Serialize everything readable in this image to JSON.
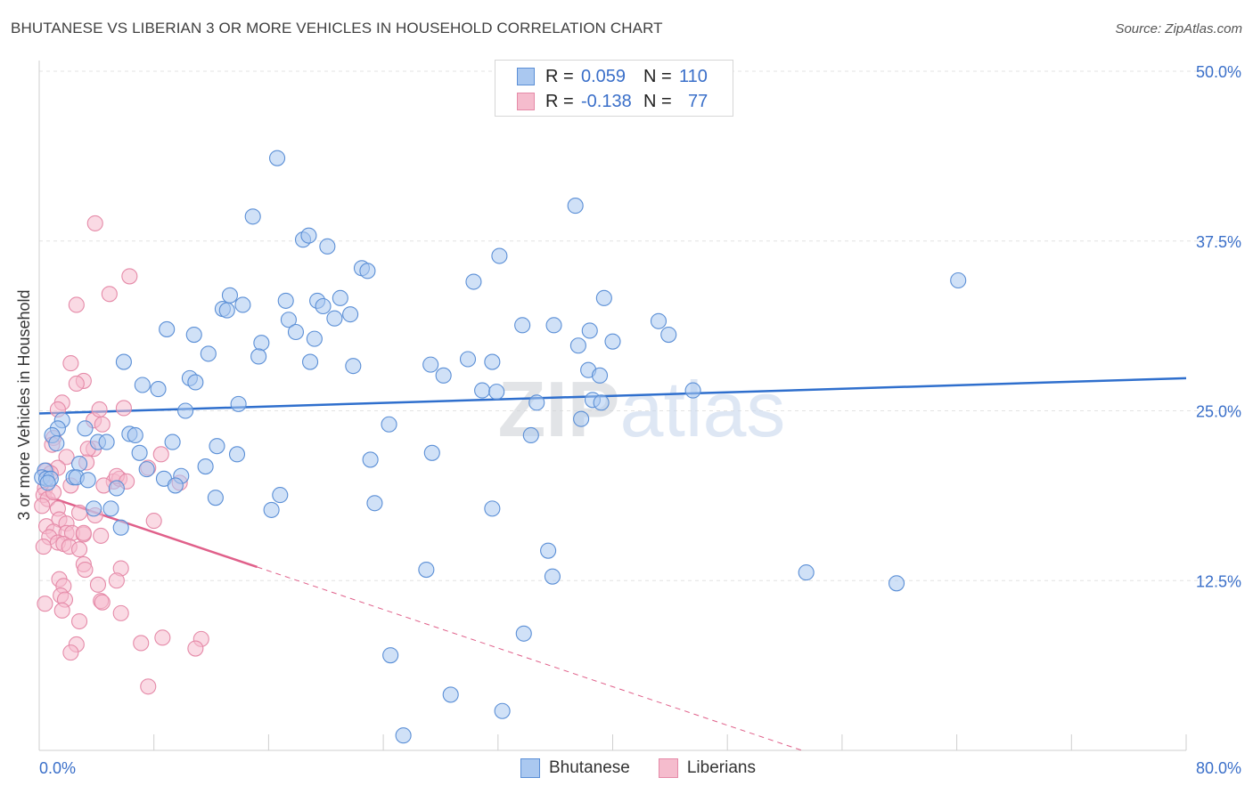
{
  "title": "BHUTANESE VS LIBERIAN 3 OR MORE VEHICLES IN HOUSEHOLD CORRELATION CHART",
  "source": "Source: ZipAtlas.com",
  "watermark": "ZIPatlas",
  "legend": {
    "rows": [
      {
        "r_label": "R =",
        "r_value": "0.059",
        "n_label": "N =",
        "n_value": "110"
      },
      {
        "r_label": "R =",
        "r_value": "-0.138",
        "n_label": "N =",
        "n_value": "77"
      }
    ],
    "series_names": [
      "Bhutanese",
      "Liberians"
    ]
  },
  "colors": {
    "blue_fill": "#aac8f0",
    "blue_stroke": "#5b8fd6",
    "blue_line": "#2f6fcd",
    "pink_fill": "#f5bccd",
    "pink_stroke": "#e58aa8",
    "pink_line": "#e0608a",
    "accent_text": "#3a6fc9"
  },
  "chart_data": {
    "type": "scatter",
    "title": "BHUTANESE VS LIBERIAN 3 OR MORE VEHICLES IN HOUSEHOLD CORRELATION CHART",
    "xlabel": "",
    "ylabel": "3 or more Vehicles in Household",
    "xlim": [
      0,
      80
    ],
    "ylim": [
      0,
      50
    ],
    "x_tick_labels": [
      "0.0%",
      "80.0%"
    ],
    "y_ticks": [
      12.5,
      25.0,
      37.5,
      50.0
    ],
    "y_tick_labels": [
      "12.5%",
      "25.0%",
      "37.5%",
      "50.0%"
    ],
    "grid": true,
    "series": [
      {
        "name": "Bhutanese",
        "r": 0.059,
        "n": 110,
        "trend": {
          "x": [
            0,
            80
          ],
          "y": [
            24.8,
            27.4
          ],
          "dashed_from": null
        },
        "points": [
          [
            16.6,
            43.6
          ],
          [
            14.9,
            39.3
          ],
          [
            37.4,
            40.1
          ],
          [
            18.4,
            37.6
          ],
          [
            18.8,
            37.9
          ],
          [
            20.1,
            37.1
          ],
          [
            32.1,
            36.4
          ],
          [
            22.5,
            35.5
          ],
          [
            22.9,
            35.3
          ],
          [
            30.3,
            34.5
          ],
          [
            64.1,
            34.6
          ],
          [
            13.3,
            33.5
          ],
          [
            17.2,
            33.1
          ],
          [
            19.4,
            33.1
          ],
          [
            21.0,
            33.3
          ],
          [
            39.4,
            33.3
          ],
          [
            12.8,
            32.5
          ],
          [
            14.2,
            32.8
          ],
          [
            13.1,
            32.4
          ],
          [
            19.8,
            32.7
          ],
          [
            21.7,
            32.1
          ],
          [
            20.6,
            31.8
          ],
          [
            17.4,
            31.7
          ],
          [
            43.2,
            31.6
          ],
          [
            33.7,
            31.3
          ],
          [
            35.9,
            31.3
          ],
          [
            8.9,
            31.0
          ],
          [
            10.8,
            30.6
          ],
          [
            17.9,
            30.8
          ],
          [
            38.4,
            30.9
          ],
          [
            43.9,
            30.6
          ],
          [
            19.2,
            30.3
          ],
          [
            15.5,
            30.0
          ],
          [
            37.6,
            29.8
          ],
          [
            40.0,
            30.1
          ],
          [
            11.8,
            29.2
          ],
          [
            15.3,
            29.0
          ],
          [
            5.9,
            28.6
          ],
          [
            18.9,
            28.6
          ],
          [
            21.9,
            28.3
          ],
          [
            27.3,
            28.4
          ],
          [
            29.9,
            28.8
          ],
          [
            31.6,
            28.6
          ],
          [
            38.3,
            28.0
          ],
          [
            10.5,
            27.4
          ],
          [
            10.9,
            27.1
          ],
          [
            28.2,
            27.6
          ],
          [
            39.1,
            27.6
          ],
          [
            7.2,
            26.9
          ],
          [
            8.3,
            26.6
          ],
          [
            30.9,
            26.5
          ],
          [
            31.9,
            26.4
          ],
          [
            45.6,
            26.5
          ],
          [
            38.6,
            25.8
          ],
          [
            39.2,
            25.6
          ],
          [
            13.9,
            25.5
          ],
          [
            34.7,
            25.6
          ],
          [
            10.2,
            25.0
          ],
          [
            37.8,
            24.4
          ],
          [
            1.6,
            24.3
          ],
          [
            24.4,
            24.0
          ],
          [
            1.3,
            23.7
          ],
          [
            3.2,
            23.7
          ],
          [
            6.3,
            23.3
          ],
          [
            6.7,
            23.2
          ],
          [
            34.3,
            23.2
          ],
          [
            0.9,
            23.2
          ],
          [
            1.2,
            22.6
          ],
          [
            4.1,
            22.7
          ],
          [
            4.7,
            22.7
          ],
          [
            9.3,
            22.7
          ],
          [
            12.4,
            22.4
          ],
          [
            7.0,
            21.9
          ],
          [
            13.8,
            21.8
          ],
          [
            27.4,
            21.9
          ],
          [
            23.1,
            21.4
          ],
          [
            0.4,
            20.6
          ],
          [
            2.8,
            21.1
          ],
          [
            11.6,
            20.9
          ],
          [
            7.5,
            20.7
          ],
          [
            0.2,
            20.1
          ],
          [
            0.5,
            20.0
          ],
          [
            0.8,
            20.0
          ],
          [
            2.4,
            20.1
          ],
          [
            2.6,
            20.1
          ],
          [
            3.4,
            19.9
          ],
          [
            8.7,
            20.0
          ],
          [
            9.9,
            20.2
          ],
          [
            0.6,
            19.7
          ],
          [
            5.4,
            19.3
          ],
          [
            9.5,
            19.5
          ],
          [
            16.8,
            18.8
          ],
          [
            12.3,
            18.6
          ],
          [
            23.4,
            18.2
          ],
          [
            31.6,
            17.8
          ],
          [
            3.8,
            17.8
          ],
          [
            5.0,
            17.8
          ],
          [
            16.2,
            17.7
          ],
          [
            5.7,
            16.4
          ],
          [
            35.5,
            14.7
          ],
          [
            27.0,
            13.3
          ],
          [
            53.5,
            13.1
          ],
          [
            35.8,
            12.8
          ],
          [
            59.8,
            12.3
          ],
          [
            33.8,
            8.6
          ],
          [
            24.5,
            7.0
          ],
          [
            28.7,
            4.1
          ],
          [
            32.3,
            2.9
          ],
          [
            25.4,
            1.1
          ]
        ]
      },
      {
        "name": "Liberians",
        "r": -0.138,
        "n": 77,
        "trend": {
          "x": [
            0,
            53.2
          ],
          "y": [
            18.9,
            0.0
          ],
          "solid_until_x": 15.2
        },
        "points": [
          [
            3.9,
            38.8
          ],
          [
            6.3,
            34.9
          ],
          [
            4.9,
            33.6
          ],
          [
            2.6,
            32.8
          ],
          [
            2.2,
            28.5
          ],
          [
            3.1,
            27.2
          ],
          [
            1.6,
            25.6
          ],
          [
            5.9,
            25.2
          ],
          [
            1.3,
            25.1
          ],
          [
            3.8,
            24.3
          ],
          [
            4.4,
            24.0
          ],
          [
            1.0,
            23.0
          ],
          [
            0.9,
            22.5
          ],
          [
            3.8,
            22.2
          ],
          [
            3.4,
            22.2
          ],
          [
            7.6,
            20.8
          ],
          [
            8.5,
            21.8
          ],
          [
            1.9,
            21.6
          ],
          [
            1.3,
            20.8
          ],
          [
            0.5,
            20.6
          ],
          [
            0.8,
            20.4
          ],
          [
            5.2,
            19.8
          ],
          [
            5.6,
            20.0
          ],
          [
            5.4,
            20.2
          ],
          [
            9.8,
            19.7
          ],
          [
            0.4,
            19.3
          ],
          [
            2.2,
            19.5
          ],
          [
            4.5,
            19.5
          ],
          [
            0.3,
            18.8
          ],
          [
            0.6,
            18.5
          ],
          [
            0.2,
            18.0
          ],
          [
            1.3,
            17.8
          ],
          [
            2.8,
            17.5
          ],
          [
            3.9,
            17.3
          ],
          [
            1.4,
            17.0
          ],
          [
            1.9,
            16.7
          ],
          [
            8.0,
            16.9
          ],
          [
            0.5,
            16.5
          ],
          [
            1.0,
            16.1
          ],
          [
            0.7,
            15.7
          ],
          [
            1.9,
            16.0
          ],
          [
            2.3,
            16.0
          ],
          [
            3.1,
            15.9
          ],
          [
            3.1,
            16.0
          ],
          [
            4.3,
            15.8
          ],
          [
            1.3,
            15.3
          ],
          [
            1.7,
            15.2
          ],
          [
            0.3,
            15.0
          ],
          [
            2.1,
            15.0
          ],
          [
            2.8,
            14.8
          ],
          [
            3.1,
            13.7
          ],
          [
            5.7,
            13.4
          ],
          [
            3.2,
            13.3
          ],
          [
            1.4,
            12.6
          ],
          [
            1.7,
            12.1
          ],
          [
            4.1,
            12.2
          ],
          [
            5.4,
            12.5
          ],
          [
            1.5,
            11.4
          ],
          [
            1.8,
            11.1
          ],
          [
            4.3,
            11.0
          ],
          [
            4.4,
            10.9
          ],
          [
            0.4,
            10.8
          ],
          [
            1.6,
            10.3
          ],
          [
            5.7,
            10.1
          ],
          [
            2.8,
            9.5
          ],
          [
            8.6,
            8.3
          ],
          [
            11.3,
            8.2
          ],
          [
            7.1,
            7.9
          ],
          [
            2.6,
            7.8
          ],
          [
            10.9,
            7.5
          ],
          [
            2.2,
            7.2
          ],
          [
            7.6,
            4.7
          ],
          [
            2.6,
            27.0
          ],
          [
            4.2,
            25.1
          ],
          [
            3.3,
            21.2
          ],
          [
            6.1,
            19.8
          ],
          [
            1.0,
            19.0
          ]
        ]
      }
    ]
  }
}
